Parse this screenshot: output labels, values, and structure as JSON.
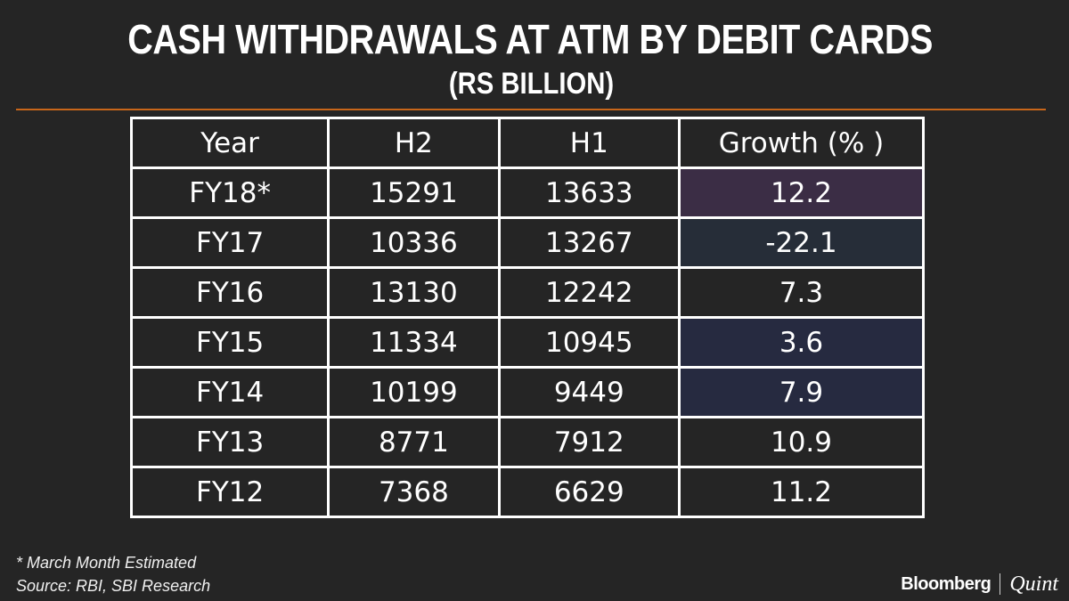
{
  "header": {
    "title": "CASH WITHDRAWALS AT ATM BY DEBIT CARDS",
    "subtitle": "(RS BILLION)",
    "rule_color": "#c8661a"
  },
  "table": {
    "columns": [
      "Year",
      "H2",
      "H1",
      "Growth (% )"
    ],
    "rows": [
      {
        "year": "FY18*",
        "h2": "15291",
        "h1": "13633",
        "growth": "12.2",
        "growth_bg": "#3b2d45"
      },
      {
        "year": "FY17",
        "h2": "10336",
        "h1": "13267",
        "growth": "-22.1",
        "growth_bg": "#262d38"
      },
      {
        "year": "FY16",
        "h2": "13130",
        "h1": "12242",
        "growth": "7.3",
        "growth_bg": "#252525"
      },
      {
        "year": "FY15",
        "h2": "11334",
        "h1": "10945",
        "growth": "3.6",
        "growth_bg": "#262a40"
      },
      {
        "year": "FY14",
        "h2": "10199",
        "h1": "9449",
        "growth": "7.9",
        "growth_bg": "#262a40"
      },
      {
        "year": "FY13",
        "h2": "8771",
        "h1": "7912",
        "growth": "10.9",
        "growth_bg": "#252525"
      },
      {
        "year": "FY12",
        "h2": "7368",
        "h1": "6629",
        "growth": "11.2",
        "growth_bg": "#252525"
      }
    ]
  },
  "footer": {
    "note": "* March Month Estimated",
    "source": "Source: RBI, SBI Research",
    "brand_left": "Bloomberg",
    "brand_right": "Quint"
  },
  "chart_data": {
    "type": "table",
    "title": "CASH WITHDRAWALS AT ATM BY DEBIT CARDS",
    "subtitle": "(RS BILLION)",
    "columns": [
      "Year",
      "H2",
      "H1",
      "Growth (% )"
    ],
    "categories": [
      "FY18*",
      "FY17",
      "FY16",
      "FY15",
      "FY14",
      "FY13",
      "FY12"
    ],
    "series": [
      {
        "name": "H2",
        "values": [
          15291,
          10336,
          13130,
          11334,
          10199,
          8771,
          7368
        ]
      },
      {
        "name": "H1",
        "values": [
          13633,
          13267,
          12242,
          10945,
          9449,
          7912,
          6629
        ]
      },
      {
        "name": "Growth (% )",
        "values": [
          12.2,
          -22.1,
          7.3,
          3.6,
          7.9,
          10.9,
          11.2
        ]
      }
    ],
    "annotations": [
      "* March Month Estimated",
      "Source: RBI, SBI Research"
    ]
  }
}
